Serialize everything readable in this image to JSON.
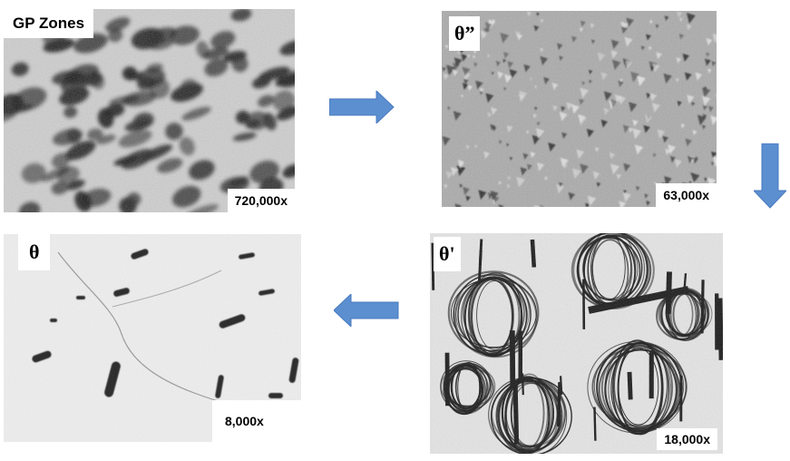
{
  "panels": [
    {
      "id": "gp",
      "label": "GP Zones",
      "magnification": "720,000x"
    },
    {
      "id": "theta2",
      "label": "θ”",
      "magnification": "63,000x"
    },
    {
      "id": "theta1",
      "label": "θ'",
      "magnification": "18,000x"
    },
    {
      "id": "theta",
      "label": "θ",
      "magnification": "8,000x"
    }
  ],
  "arrow_color": "#5b8fd0",
  "arrows": [
    "right",
    "down",
    "left"
  ]
}
